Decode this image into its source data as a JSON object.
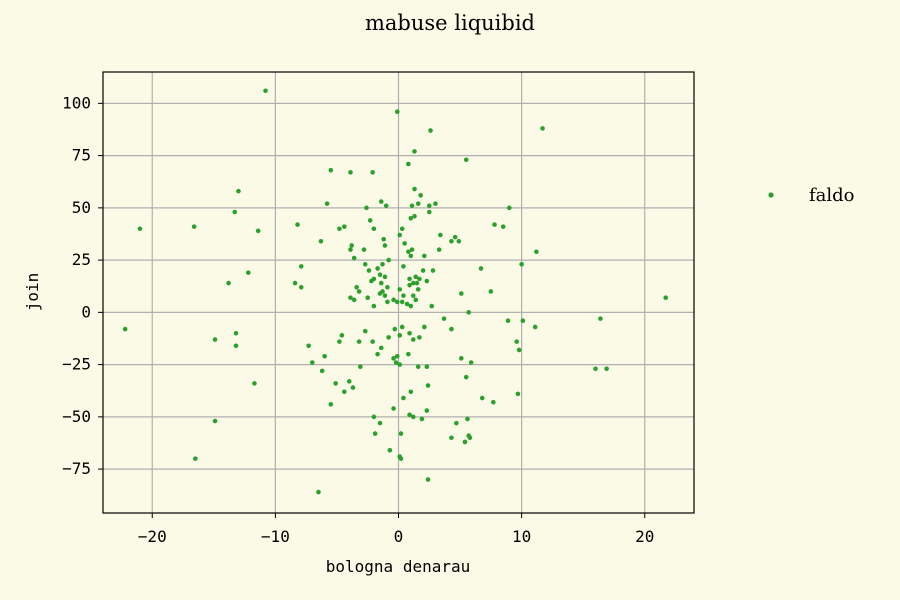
{
  "chart_data": {
    "type": "scatter",
    "title": "mabuse liquibid",
    "xlabel": "bologna denarau",
    "ylabel": "join",
    "xlim": [
      -24.0,
      24.0
    ],
    "ylim": [
      -96.0,
      115.0
    ],
    "xticks": [
      -20,
      -10,
      0,
      10,
      20
    ],
    "yticks": [
      -75,
      -50,
      -25,
      0,
      25,
      50,
      75,
      100
    ],
    "xtick_labels": [
      "−20",
      "−10",
      "0",
      "10",
      "20"
    ],
    "ytick_labels": [
      "−75",
      "−50",
      "−25",
      "0",
      "25",
      "50",
      "75",
      "100"
    ],
    "grid": true,
    "legend_position": "outside-right",
    "series": [
      {
        "name": "faldo",
        "color": "#2ca02c",
        "points": [
          [
            -10.8,
            106
          ],
          [
            -0.1,
            96
          ],
          [
            2.6,
            87
          ],
          [
            11.7,
            88
          ],
          [
            1.3,
            77
          ],
          [
            5.5,
            73
          ],
          [
            0.8,
            71
          ],
          [
            -5.5,
            68
          ],
          [
            -3.9,
            67
          ],
          [
            -2.1,
            67
          ],
          [
            -13.0,
            58
          ],
          [
            1.3,
            59
          ],
          [
            -13.3,
            48
          ],
          [
            -5.8,
            52
          ],
          [
            -2.6,
            50
          ],
          [
            -1.4,
            53
          ],
          [
            -1.0,
            51
          ],
          [
            1.8,
            56
          ],
          [
            1.6,
            52
          ],
          [
            2.5,
            51
          ],
          [
            3.0,
            52
          ],
          [
            1.1,
            51
          ],
          [
            2.5,
            48
          ],
          [
            1.3,
            46
          ],
          [
            1.0,
            45
          ],
          [
            9.0,
            50
          ],
          [
            -16.6,
            41
          ],
          [
            -21.0,
            40
          ],
          [
            -11.4,
            39
          ],
          [
            -8.2,
            42
          ],
          [
            -4.8,
            40
          ],
          [
            -4.4,
            41
          ],
          [
            -2.3,
            44
          ],
          [
            -2.0,
            40
          ],
          [
            0.1,
            37
          ],
          [
            0.3,
            40
          ],
          [
            3.4,
            37
          ],
          [
            4.3,
            34
          ],
          [
            4.6,
            36
          ],
          [
            4.9,
            34
          ],
          [
            7.8,
            42
          ],
          [
            8.5,
            41
          ],
          [
            11.2,
            29
          ],
          [
            -6.3,
            34
          ],
          [
            -3.9,
            30
          ],
          [
            -3.8,
            32
          ],
          [
            -2.8,
            30
          ],
          [
            -1.2,
            35
          ],
          [
            -1.1,
            32
          ],
          [
            0.5,
            33
          ],
          [
            0.8,
            29
          ],
          [
            1.1,
            30
          ],
          [
            3.3,
            30
          ],
          [
            -3.6,
            26
          ],
          [
            -2.7,
            23
          ],
          [
            -2.4,
            20
          ],
          [
            -1.7,
            21
          ],
          [
            -1.3,
            23
          ],
          [
            -0.8,
            25
          ],
          [
            1.0,
            27
          ],
          [
            2.1,
            27
          ],
          [
            -7.9,
            22
          ],
          [
            -12.2,
            19
          ],
          [
            -2.0,
            16
          ],
          [
            -1.5,
            18
          ],
          [
            -1.1,
            17
          ],
          [
            0.4,
            22
          ],
          [
            0.9,
            16
          ],
          [
            1.4,
            17
          ],
          [
            1.7,
            16
          ],
          [
            2.0,
            20
          ],
          [
            2.8,
            20
          ],
          [
            6.7,
            21
          ],
          [
            10.0,
            23
          ],
          [
            -13.8,
            14
          ],
          [
            -8.4,
            14
          ],
          [
            -7.9,
            12
          ],
          [
            -3.4,
            12
          ],
          [
            -2.2,
            15
          ],
          [
            -1.4,
            14
          ],
          [
            -1.3,
            10
          ],
          [
            -0.9,
            12
          ],
          [
            0.1,
            11
          ],
          [
            0.9,
            13
          ],
          [
            1.2,
            14
          ],
          [
            1.5,
            14
          ],
          [
            1.6,
            11
          ],
          [
            2.3,
            15
          ],
          [
            -3.9,
            7
          ],
          [
            -3.6,
            6
          ],
          [
            -3.2,
            10
          ],
          [
            -2.5,
            7
          ],
          [
            -2.0,
            3
          ],
          [
            -1.5,
            9
          ],
          [
            -1.1,
            8
          ],
          [
            -0.9,
            5
          ],
          [
            -0.4,
            6
          ],
          [
            -0.1,
            5
          ],
          [
            0.3,
            5
          ],
          [
            0.4,
            8
          ],
          [
            0.7,
            4
          ],
          [
            1.0,
            3
          ],
          [
            1.2,
            8
          ],
          [
            1.4,
            6
          ],
          [
            2.7,
            3
          ],
          [
            5.1,
            9
          ],
          [
            7.5,
            10
          ],
          [
            21.7,
            7
          ],
          [
            -22.2,
            -8
          ],
          [
            -14.9,
            -13
          ],
          [
            -13.2,
            -10
          ],
          [
            -13.2,
            -16
          ],
          [
            -7.3,
            -16
          ],
          [
            -6.0,
            -21
          ],
          [
            -4.8,
            -14
          ],
          [
            -4.6,
            -11
          ],
          [
            -3.2,
            -14
          ],
          [
            -2.7,
            -9
          ],
          [
            -2.1,
            -14
          ],
          [
            -1.7,
            -20
          ],
          [
            -1.4,
            -17
          ],
          [
            -0.8,
            -12
          ],
          [
            -0.3,
            -8
          ],
          [
            0.1,
            -11
          ],
          [
            0.3,
            -7
          ],
          [
            0.9,
            -10
          ],
          [
            1.2,
            -13
          ],
          [
            1.7,
            -12
          ],
          [
            2.1,
            -7
          ],
          [
            3.7,
            -3
          ],
          [
            4.3,
            -8
          ],
          [
            5.7,
            0
          ],
          [
            8.9,
            -4
          ],
          [
            9.6,
            -14
          ],
          [
            9.8,
            -18
          ],
          [
            10.1,
            -4
          ],
          [
            11.1,
            -7
          ],
          [
            16.4,
            -3
          ],
          [
            -11.7,
            -34
          ],
          [
            -7.0,
            -24
          ],
          [
            -6.2,
            -28
          ],
          [
            -5.1,
            -34
          ],
          [
            -4.4,
            -38
          ],
          [
            -4.0,
            -33
          ],
          [
            -3.7,
            -36
          ],
          [
            -3.1,
            -26
          ],
          [
            -0.4,
            -22
          ],
          [
            -0.2,
            -24
          ],
          [
            -0.1,
            -21
          ],
          [
            0.1,
            -25
          ],
          [
            0.8,
            -20
          ],
          [
            1.6,
            -26
          ],
          [
            2.3,
            -26
          ],
          [
            2.4,
            -35
          ],
          [
            5.1,
            -22
          ],
          [
            5.5,
            -31
          ],
          [
            5.9,
            -24
          ],
          [
            16.0,
            -27
          ],
          [
            16.9,
            -27
          ],
          [
            -14.9,
            -52
          ],
          [
            -16.5,
            -70
          ],
          [
            -5.5,
            -44
          ],
          [
            -2.0,
            -50
          ],
          [
            -1.9,
            -58
          ],
          [
            -1.5,
            -53
          ],
          [
            -0.4,
            -46
          ],
          [
            0.2,
            -58
          ],
          [
            0.4,
            -41
          ],
          [
            1.0,
            -38
          ],
          [
            0.9,
            -49
          ],
          [
            1.2,
            -50
          ],
          [
            1.9,
            -51
          ],
          [
            2.3,
            -47
          ],
          [
            4.3,
            -60
          ],
          [
            4.7,
            -53
          ],
          [
            5.4,
            -62
          ],
          [
            5.6,
            -51
          ],
          [
            5.7,
            -59
          ],
          [
            5.8,
            -60
          ],
          [
            6.8,
            -41
          ],
          [
            7.7,
            -43
          ],
          [
            9.7,
            -39
          ],
          [
            -0.7,
            -66
          ],
          [
            0.1,
            -69
          ],
          [
            0.2,
            -70
          ],
          [
            -6.5,
            -86
          ],
          [
            2.4,
            -80
          ]
        ]
      }
    ]
  }
}
